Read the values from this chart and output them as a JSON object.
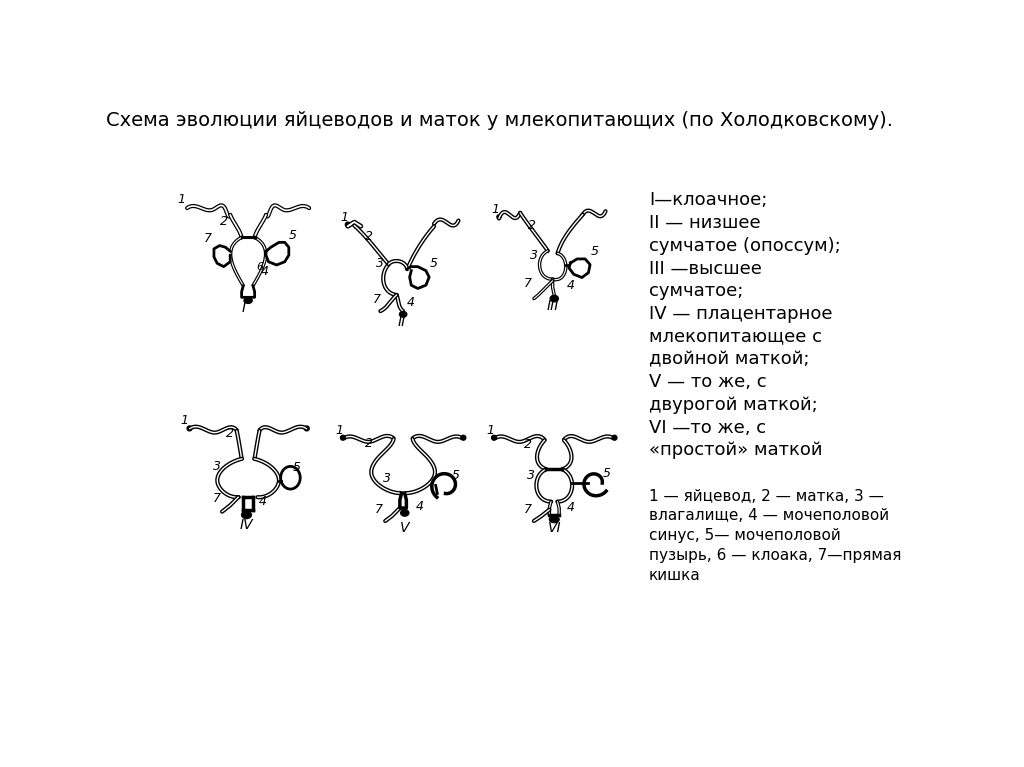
{
  "title": "Схема эволюции яйцеводов и маток у млекопитающих (по Холодковскому).",
  "background_color": "#ffffff",
  "legend_lines": [
    "I—клоачное;",
    "II — низшее",
    "сумчатое (опоссум);",
    "III —высшее",
    "сумчатое;",
    "IV — плацентарное",
    "млекопитающее с",
    "двойной маткой;",
    "V — то же, с",
    "двурогой маткой;",
    "VI —то же, с",
    "«простой» маткой"
  ],
  "footnote": "1 — яйцевод, 2 — матка, 3 —\nвлагалище, 4 — мочеполовой\nсинус, 5— мочеполовой\nпузырь, 6 — клоака, 7—прямая\nкишка",
  "title_fontsize": 14,
  "legend_fontsize": 13,
  "footnote_fontsize": 11,
  "panel_positions": [
    [
      1.55,
      5.55,
      "I"
    ],
    [
      3.55,
      5.35,
      "II"
    ],
    [
      5.5,
      5.45,
      "III"
    ],
    [
      1.55,
      2.85,
      "IV"
    ],
    [
      3.55,
      2.75,
      "V"
    ],
    [
      5.5,
      2.75,
      "VI"
    ]
  ],
  "sc": 1.05
}
